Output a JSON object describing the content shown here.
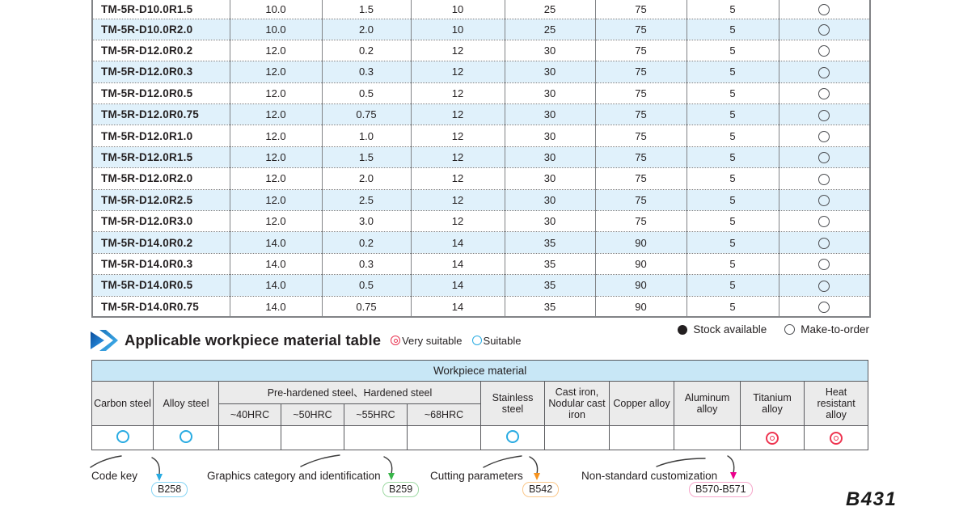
{
  "page": {
    "number_label": "B431"
  },
  "main_table": {
    "rows": [
      {
        "model": "TM-5R-D10.0R1.5",
        "values": [
          "10.0",
          "1.5",
          "10",
          "25",
          "75",
          "5"
        ],
        "stock": "make-to-order"
      },
      {
        "model": "TM-5R-D10.0R2.0",
        "values": [
          "10.0",
          "2.0",
          "10",
          "25",
          "75",
          "5"
        ],
        "stock": "make-to-order"
      },
      {
        "model": "TM-5R-D12.0R0.2",
        "values": [
          "12.0",
          "0.2",
          "12",
          "30",
          "75",
          "5"
        ],
        "stock": "make-to-order"
      },
      {
        "model": "TM-5R-D12.0R0.3",
        "values": [
          "12.0",
          "0.3",
          "12",
          "30",
          "75",
          "5"
        ],
        "stock": "make-to-order"
      },
      {
        "model": "TM-5R-D12.0R0.5",
        "values": [
          "12.0",
          "0.5",
          "12",
          "30",
          "75",
          "5"
        ],
        "stock": "make-to-order"
      },
      {
        "model": "TM-5R-D12.0R0.75",
        "values": [
          "12.0",
          "0.75",
          "12",
          "30",
          "75",
          "5"
        ],
        "stock": "make-to-order"
      },
      {
        "model": "TM-5R-D12.0R1.0",
        "values": [
          "12.0",
          "1.0",
          "12",
          "30",
          "75",
          "5"
        ],
        "stock": "make-to-order"
      },
      {
        "model": "TM-5R-D12.0R1.5",
        "values": [
          "12.0",
          "1.5",
          "12",
          "30",
          "75",
          "5"
        ],
        "stock": "make-to-order"
      },
      {
        "model": "TM-5R-D12.0R2.0",
        "values": [
          "12.0",
          "2.0",
          "12",
          "30",
          "75",
          "5"
        ],
        "stock": "make-to-order"
      },
      {
        "model": "TM-5R-D12.0R2.5",
        "values": [
          "12.0",
          "2.5",
          "12",
          "30",
          "75",
          "5"
        ],
        "stock": "make-to-order"
      },
      {
        "model": "TM-5R-D12.0R3.0",
        "values": [
          "12.0",
          "3.0",
          "12",
          "30",
          "75",
          "5"
        ],
        "stock": "make-to-order"
      },
      {
        "model": "TM-5R-D14.0R0.2",
        "values": [
          "14.0",
          "0.2",
          "14",
          "35",
          "90",
          "5"
        ],
        "stock": "make-to-order"
      },
      {
        "model": "TM-5R-D14.0R0.3",
        "values": [
          "14.0",
          "0.3",
          "14",
          "35",
          "90",
          "5"
        ],
        "stock": "make-to-order"
      },
      {
        "model": "TM-5R-D14.0R0.5",
        "values": [
          "14.0",
          "0.5",
          "14",
          "35",
          "90",
          "5"
        ],
        "stock": "make-to-order"
      },
      {
        "model": "TM-5R-D14.0R0.75",
        "values": [
          "14.0",
          "0.75",
          "14",
          "35",
          "90",
          "5"
        ],
        "stock": "make-to-order"
      }
    ]
  },
  "section": {
    "title": "Applicable workpiece material table",
    "legend": [
      {
        "symbol": "very-suitable-icon",
        "label": "Very suitable",
        "color": "#e83350"
      },
      {
        "symbol": "suitable-icon",
        "label": "Suitable",
        "color": "#29abe2"
      }
    ]
  },
  "stock_legend": [
    {
      "symbol": "filled-circle-icon",
      "label": "Stock available"
    },
    {
      "symbol": "open-circle-icon",
      "label": "Make-to-order"
    }
  ],
  "material_table": {
    "title": "Workpiece material",
    "group_header": "Pre-hardened steel、Hardened steel",
    "columns": [
      "Carbon steel",
      "Alloy steel",
      "~40HRC",
      "~50HRC",
      "~55HRC",
      "~68HRC",
      "Stainless steel",
      "Cast iron, Nodular cast iron",
      "Copper alloy",
      "Aluminum alloy",
      "Titanium alloy",
      "Heat resistant alloy"
    ],
    "suitability": [
      "suitable",
      "suitable",
      "",
      "",
      "",
      "",
      "suitable",
      "",
      "",
      "",
      "very-suitable",
      "very-suitable"
    ]
  },
  "footer": {
    "links": [
      {
        "label": "Code key",
        "page": "B258",
        "accent": "#29abe2",
        "box_border": "#86d5f5"
      },
      {
        "label": "Graphics category and identification",
        "page": "B259",
        "accent": "#39b54a",
        "box_border": "#9fd9a4"
      },
      {
        "label": "Cutting parameters",
        "page": "B542",
        "accent": "#f7931e",
        "box_border": "#fbc88b"
      },
      {
        "label": "Non-standard customization",
        "page": "B570-B571",
        "accent": "#ec008c",
        "box_border": "#f6a6ca"
      }
    ]
  }
}
